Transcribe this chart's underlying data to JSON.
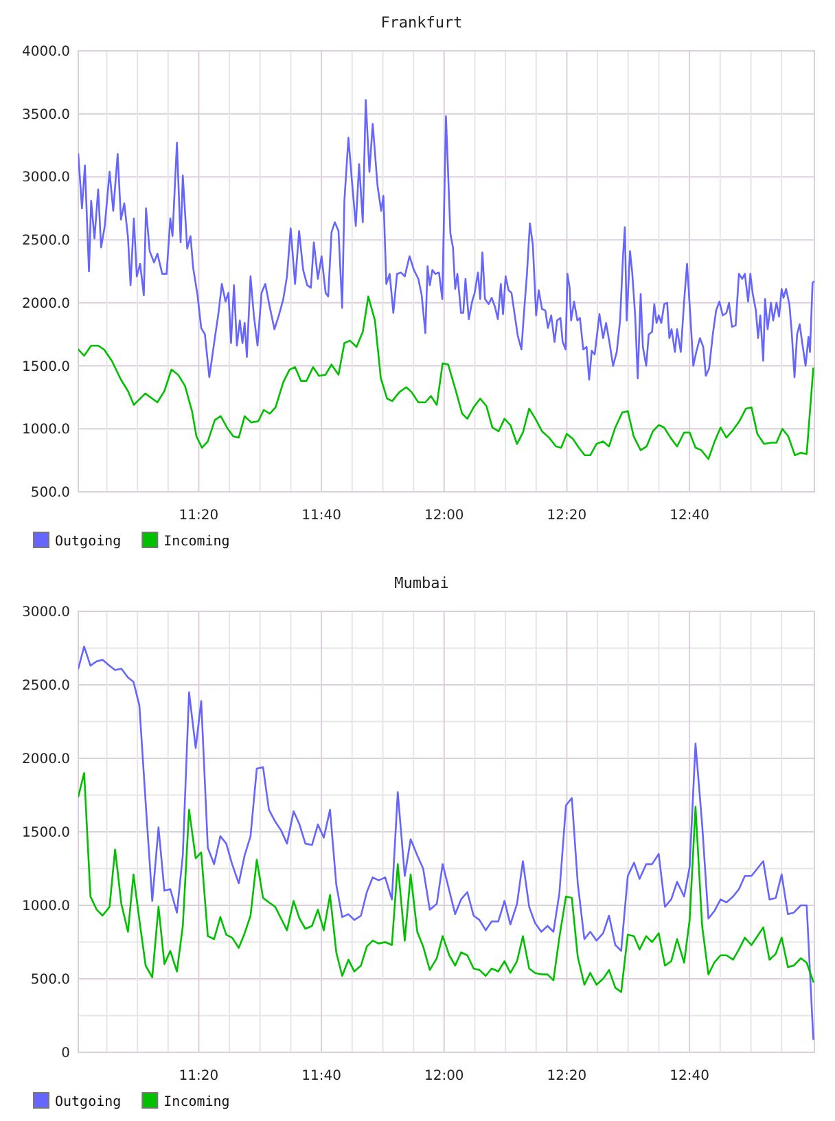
{
  "chart_data": [
    {
      "type": "line",
      "title": "Frankfurt",
      "series": [
        {
          "name": "Outgoing",
          "color": "#6666ff",
          "x": [
            11.006,
            11.016,
            11.024,
            11.035,
            11.041,
            11.05,
            11.06,
            11.068,
            11.078,
            11.091,
            11.101,
            11.113,
            11.122,
            11.131,
            11.141,
            11.148,
            11.157,
            11.165,
            11.174,
            11.184,
            11.19,
            11.2,
            11.212,
            11.221,
            11.234,
            11.246,
            11.256,
            11.262,
            11.274,
            11.284,
            11.29,
            11.302,
            11.311,
            11.318,
            11.33,
            11.34,
            11.35,
            11.362,
            11.377,
            11.387,
            11.396,
            11.406,
            11.414,
            11.421,
            11.429,
            11.437,
            11.445,
            11.452,
            11.458,
            11.464,
            11.474,
            11.483,
            11.493,
            11.504,
            11.514,
            11.526,
            11.539,
            11.551,
            11.563,
            11.573,
            11.583,
            11.595,
            11.606,
            11.617,
            11.628,
            11.638,
            11.646,
            11.657,
            11.667,
            11.678,
            11.685,
            11.694,
            11.703,
            11.713,
            11.723,
            11.729,
            11.74,
            11.75,
            11.76,
            11.769,
            11.779,
            11.787,
            11.797,
            11.806,
            11.819,
            11.829,
            11.835,
            11.843,
            11.852,
            11.862,
            11.872,
            11.883,
            11.893,
            11.906,
            11.918,
            11.93,
            11.939,
            11.949,
            11.955,
            11.961,
            11.968,
            11.976,
            11.986,
            11.995,
            12.005,
            12.017,
            12.024,
            12.03,
            12.036,
            12.046,
            12.052,
            12.058,
            12.067,
            12.076,
            12.083,
            12.092,
            12.098,
            12.104,
            12.111,
            12.121,
            12.129,
            12.138,
            12.146,
            12.154,
            12.16,
            12.167,
            12.175,
            12.183,
            12.192,
            12.2,
            12.21,
            12.216,
            12.225,
            12.233,
            12.241,
            12.25,
            12.257,
            12.266,
            12.275,
            12.282,
            12.291,
            12.3,
            12.307,
            12.316,
            12.322,
            12.33,
            12.335,
            12.341,
            12.345,
            12.353,
            12.362,
            12.369,
            12.378,
            12.387,
            12.394,
            12.401,
            12.409,
            12.422,
            12.432,
            12.44,
            12.449,
            12.459,
            12.469,
            12.478,
            12.486,
            12.491,
            12.496,
            12.505,
            12.511,
            12.519,
            12.526,
            12.534,
            12.54,
            12.549,
            12.556,
            12.565,
            12.571,
            12.577,
            12.583,
            12.59,
            12.598,
            12.606,
            12.612,
            12.618,
            12.627,
            12.633,
            12.643,
            12.652,
            12.66,
            12.668,
            12.677,
            12.685,
            12.695,
            12.704,
            12.711,
            12.72,
            12.73,
            12.739,
            12.748,
            12.757,
            12.767,
            12.774,
            12.782,
            12.792,
            12.801,
            12.81,
            12.817,
            12.826,
            12.832,
            12.838,
            12.847,
            12.853,
            12.859,
            12.867,
            12.872,
            12.879,
            12.888,
            12.894,
            12.903,
            12.91,
            12.917,
            12.922,
            12.929,
            12.938,
            12.944,
            12.952,
            12.959,
            12.966,
            12.973,
            12.982,
            12.99,
            12.994,
            13.001,
            13.006
          ],
          "values": [
            3180,
            2750,
            3090,
            2250,
            2810,
            2510,
            2900,
            2440,
            2610,
            3040,
            2730,
            3180,
            2660,
            2790,
            2520,
            2140,
            2670,
            2210,
            2310,
            2060,
            2750,
            2410,
            2320,
            2390,
            2230,
            2230,
            2670,
            2530,
            3270,
            2480,
            3010,
            2430,
            2530,
            2280,
            2060,
            1800,
            1750,
            1410,
            1720,
            1920,
            2150,
            2010,
            2080,
            1680,
            2140,
            1660,
            1860,
            1680,
            1840,
            1570,
            2210,
            1900,
            1660,
            2080,
            2150,
            1970,
            1790,
            1900,
            2030,
            2210,
            2590,
            2150,
            2570,
            2260,
            2140,
            2120,
            2480,
            2190,
            2370,
            2080,
            2050,
            2560,
            2640,
            2570,
            1960,
            2810,
            3310,
            2950,
            2610,
            3100,
            2640,
            3610,
            3040,
            3420,
            2930,
            2730,
            2850,
            2150,
            2230,
            1920,
            2230,
            2240,
            2210,
            2370,
            2260,
            2190,
            2060,
            1760,
            2290,
            2140,
            2260,
            2230,
            2240,
            2030,
            3480,
            2550,
            2440,
            2110,
            2230,
            1920,
            1920,
            2190,
            1870,
            2010,
            2080,
            2240,
            2030,
            2400,
            2030,
            1990,
            2040,
            1970,
            1870,
            2150,
            1910,
            2210,
            2100,
            2080,
            1900,
            1740,
            1630,
            1880,
            2230,
            2630,
            2460,
            1900,
            2100,
            1950,
            1940,
            1800,
            1900,
            1690,
            1860,
            1880,
            1690,
            1630,
            2230,
            2120,
            1860,
            2010,
            1860,
            1880,
            1630,
            1650,
            1390,
            1620,
            1590,
            1910,
            1720,
            1840,
            1690,
            1500,
            1610,
            1860,
            2370,
            2600,
            1860,
            2410,
            2240,
            1900,
            1400,
            2070,
            1650,
            1500,
            1750,
            1770,
            1990,
            1840,
            1900,
            1840,
            1990,
            2000,
            1720,
            1790,
            1610,
            1790,
            1610,
            2010,
            2310,
            1940,
            1500,
            1610,
            1720,
            1650,
            1420,
            1480,
            1750,
            1940,
            2010,
            1900,
            1920,
            2000,
            1810,
            1820,
            2230,
            2190,
            2230,
            2010,
            2230,
            2080,
            1940,
            1720,
            1900,
            1540,
            2030,
            1790,
            2000,
            1860,
            2000,
            1890,
            2110,
            2040,
            2110,
            1990,
            1780,
            1410,
            1750,
            1830,
            1680,
            1500,
            1730,
            1610,
            2160,
            2170
          ]
        },
        {
          "name": "Incoming",
          "color": "#00c000",
          "x": [
            11.006,
            11.022,
            11.041,
            11.06,
            11.076,
            11.097,
            11.122,
            11.141,
            11.157,
            11.188,
            11.221,
            11.24,
            11.259,
            11.277,
            11.296,
            11.315,
            11.327,
            11.342,
            11.358,
            11.377,
            11.393,
            11.41,
            11.427,
            11.442,
            11.458,
            11.476,
            11.495,
            11.51,
            11.526,
            11.542,
            11.563,
            11.58,
            11.595,
            11.611,
            11.626,
            11.644,
            11.66,
            11.678,
            11.694,
            11.713,
            11.729,
            11.744,
            11.762,
            11.779,
            11.794,
            11.812,
            11.828,
            11.845,
            11.859,
            11.878,
            11.897,
            11.912,
            11.93,
            11.949,
            11.964,
            11.98,
            11.996,
            12.011,
            12.03,
            12.049,
            12.063,
            12.08,
            12.098,
            12.115,
            12.131,
            12.148,
            12.164,
            12.18,
            12.198,
            12.214,
            12.231,
            12.248,
            12.266,
            12.285,
            12.304,
            12.318,
            12.333,
            12.35,
            12.366,
            12.382,
            12.397,
            12.414,
            12.432,
            12.448,
            12.465,
            12.484,
            12.499,
            12.515,
            12.534,
            12.55,
            12.567,
            12.583,
            12.598,
            12.615,
            12.633,
            12.652,
            12.667,
            12.683,
            12.699,
            12.718,
            12.735,
            12.751,
            12.767,
            12.785,
            12.802,
            12.82,
            12.835,
            12.851,
            12.869,
            12.888,
            12.903,
            12.919,
            12.935,
            12.953,
            12.969,
            12.985,
            13.003
          ],
          "values": [
            1630,
            1580,
            1660,
            1660,
            1630,
            1540,
            1390,
            1300,
            1190,
            1280,
            1210,
            1300,
            1470,
            1430,
            1340,
            1140,
            940,
            850,
            900,
            1070,
            1100,
            1010,
            940,
            930,
            1100,
            1050,
            1060,
            1150,
            1120,
            1170,
            1370,
            1470,
            1490,
            1380,
            1380,
            1490,
            1420,
            1430,
            1510,
            1430,
            1680,
            1700,
            1650,
            1770,
            2050,
            1860,
            1400,
            1240,
            1220,
            1290,
            1330,
            1290,
            1210,
            1210,
            1260,
            1190,
            1520,
            1510,
            1320,
            1120,
            1080,
            1170,
            1240,
            1180,
            1010,
            980,
            1080,
            1030,
            880,
            970,
            1160,
            1080,
            980,
            930,
            860,
            850,
            960,
            920,
            850,
            790,
            790,
            880,
            900,
            860,
            1010,
            1130,
            1140,
            940,
            830,
            860,
            980,
            1030,
            1010,
            930,
            860,
            970,
            970,
            850,
            830,
            760,
            900,
            1010,
            930,
            990,
            1060,
            1160,
            1170,
            960,
            880,
            890,
            890,
            1000,
            940,
            790,
            810,
            800,
            1480
          ]
        }
      ],
      "xlim": [
        11.006,
        13.006
      ],
      "xticks": [
        {
          "value": 11.0833,
          "label": null
        },
        {
          "value": 11.1667,
          "label": null
        },
        {
          "value": 11.25,
          "label": null
        },
        {
          "value": 11.3333,
          "label": "11:20"
        },
        {
          "value": 11.4167,
          "label": null
        },
        {
          "value": 11.5,
          "label": null
        },
        {
          "value": 11.5833,
          "label": null
        },
        {
          "value": 11.6667,
          "label": "11:40"
        },
        {
          "value": 11.75,
          "label": null
        },
        {
          "value": 11.8333,
          "label": null
        },
        {
          "value": 11.9167,
          "label": null
        },
        {
          "value": 12,
          "label": "12:00"
        },
        {
          "value": 12.0833,
          "label": null
        },
        {
          "value": 12.1667,
          "label": null
        },
        {
          "value": 12.25,
          "label": null
        },
        {
          "value": 12.3333,
          "label": "12:20"
        },
        {
          "value": 12.4167,
          "label": null
        },
        {
          "value": 12.5,
          "label": null
        },
        {
          "value": 12.5833,
          "label": null
        },
        {
          "value": 12.6667,
          "label": "12:40"
        },
        {
          "value": 12.75,
          "label": null
        },
        {
          "value": 12.8333,
          "label": null
        },
        {
          "value": 12.9167,
          "label": null
        }
      ],
      "ylim": [
        500,
        4000
      ],
      "yticks": [
        {
          "value": 500,
          "label": "500.0"
        },
        {
          "value": 1000,
          "label": "1000.0"
        },
        {
          "value": 1500,
          "label": "1500.0"
        },
        {
          "value": 2000,
          "label": "2000.0"
        },
        {
          "value": 2500,
          "label": "2500.0"
        },
        {
          "value": 3000,
          "label": "3000.0"
        },
        {
          "value": 3500,
          "label": "3500.0"
        },
        {
          "value": 4000,
          "label": "4000.0"
        }
      ],
      "grid": true,
      "legend": "bottom left"
    },
    {
      "type": "line",
      "title": "Mumbai",
      "x": [
        11.006,
        11.022,
        11.039,
        11.056,
        11.072,
        11.091,
        11.106,
        11.123,
        11.141,
        11.156,
        11.172,
        11.189,
        11.207,
        11.224,
        11.24,
        11.256,
        11.274,
        11.29,
        11.307,
        11.325,
        11.34,
        11.358,
        11.375,
        11.392,
        11.408,
        11.424,
        11.442,
        11.458,
        11.474,
        11.491,
        11.508,
        11.524,
        11.541,
        11.557,
        11.573,
        11.591,
        11.607,
        11.623,
        11.641,
        11.657,
        11.673,
        11.69,
        11.707,
        11.723,
        11.74,
        11.756,
        11.774,
        11.79,
        11.806,
        11.822,
        11.84,
        11.858,
        11.874,
        11.893,
        11.909,
        11.927,
        11.943,
        11.961,
        11.98,
        11.996,
        12.014,
        12.03,
        12.046,
        12.063,
        12.08,
        12.096,
        12.113,
        12.129,
        12.147,
        12.164,
        12.18,
        12.198,
        12.214,
        12.231,
        12.247,
        12.264,
        12.281,
        12.297,
        12.313,
        12.331,
        12.347,
        12.363,
        12.381,
        12.397,
        12.414,
        12.432,
        12.448,
        12.465,
        12.481,
        12.499,
        12.516,
        12.531,
        12.549,
        12.565,
        12.583,
        12.6,
        12.617,
        12.633,
        12.652,
        12.667,
        12.683,
        12.701,
        12.718,
        12.734,
        12.751,
        12.767,
        12.785,
        12.801,
        12.817,
        12.835,
        12.851,
        12.867,
        12.884,
        12.901,
        12.917,
        12.934,
        12.95,
        12.969,
        12.985,
        13.003
      ],
      "series": [
        {
          "name": "Outgoing",
          "color": "#6666ff",
          "values": [
            2610,
            2760,
            2630,
            2660,
            2670,
            2630,
            2600,
            2610,
            2550,
            2520,
            2360,
            1700,
            1030,
            1530,
            1100,
            1110,
            950,
            1340,
            2450,
            2070,
            2390,
            1390,
            1280,
            1470,
            1420,
            1280,
            1150,
            1340,
            1470,
            1930,
            1940,
            1650,
            1570,
            1510,
            1420,
            1640,
            1550,
            1420,
            1410,
            1550,
            1460,
            1650,
            1140,
            920,
            940,
            900,
            930,
            1090,
            1190,
            1170,
            1190,
            1040,
            1770,
            1200,
            1450,
            1340,
            1250,
            970,
            1010,
            1280,
            1100,
            940,
            1040,
            1090,
            930,
            900,
            830,
            890,
            890,
            1030,
            870,
            1010,
            1300,
            990,
            880,
            820,
            860,
            820,
            1080,
            1680,
            1730,
            1150,
            770,
            820,
            760,
            810,
            930,
            730,
            690,
            1200,
            1290,
            1180,
            1280,
            1280,
            1350,
            990,
            1040,
            1160,
            1060,
            1260,
            2100,
            1550,
            910,
            960,
            1040,
            1020,
            1060,
            1110,
            1200,
            1200,
            1250,
            1300,
            1040,
            1050,
            1210,
            940,
            950,
            1000,
            1000,
            90
          ]
        },
        {
          "name": "Incoming",
          "color": "#00c000",
          "values": [
            1740,
            1900,
            1060,
            970,
            930,
            990,
            1380,
            1010,
            820,
            1210,
            900,
            590,
            510,
            990,
            600,
            690,
            550,
            860,
            1650,
            1320,
            1360,
            790,
            770,
            920,
            800,
            780,
            710,
            810,
            930,
            1310,
            1050,
            1020,
            990,
            910,
            830,
            1030,
            910,
            840,
            860,
            970,
            830,
            1070,
            680,
            520,
            630,
            550,
            590,
            720,
            760,
            740,
            750,
            730,
            1280,
            760,
            1210,
            820,
            720,
            560,
            640,
            790,
            660,
            590,
            680,
            660,
            570,
            560,
            520,
            570,
            550,
            620,
            540,
            620,
            790,
            570,
            540,
            530,
            530,
            490,
            780,
            1060,
            1050,
            650,
            460,
            540,
            460,
            500,
            560,
            440,
            410,
            800,
            790,
            700,
            790,
            750,
            810,
            590,
            620,
            770,
            610,
            900,
            1670,
            860,
            530,
            610,
            660,
            660,
            630,
            700,
            780,
            730,
            790,
            850,
            630,
            670,
            780,
            580,
            590,
            640,
            610,
            480
          ]
        }
      ],
      "xlim": [
        11.006,
        13.006
      ],
      "xticks": [
        {
          "value": 11.0833,
          "label": null
        },
        {
          "value": 11.1667,
          "label": null
        },
        {
          "value": 11.25,
          "label": null
        },
        {
          "value": 11.3333,
          "label": "11:20"
        },
        {
          "value": 11.4167,
          "label": null
        },
        {
          "value": 11.5,
          "label": null
        },
        {
          "value": 11.5833,
          "label": null
        },
        {
          "value": 11.6667,
          "label": "11:40"
        },
        {
          "value": 11.75,
          "label": null
        },
        {
          "value": 11.8333,
          "label": null
        },
        {
          "value": 11.9167,
          "label": null
        },
        {
          "value": 12,
          "label": "12:00"
        },
        {
          "value": 12.0833,
          "label": null
        },
        {
          "value": 12.1667,
          "label": null
        },
        {
          "value": 12.25,
          "label": null
        },
        {
          "value": 12.3333,
          "label": "12:20"
        },
        {
          "value": 12.4167,
          "label": null
        },
        {
          "value": 12.5,
          "label": null
        },
        {
          "value": 12.5833,
          "label": null
        },
        {
          "value": 12.6667,
          "label": "12:40"
        },
        {
          "value": 12.75,
          "label": null
        },
        {
          "value": 12.8333,
          "label": null
        },
        {
          "value": 12.9167,
          "label": null
        }
      ],
      "ylim": [
        0,
        3000
      ],
      "yticks": [
        0,
        {
          "value": 250,
          "label": null
        },
        {
          "value": 500,
          "label": "500.0"
        },
        {
          "value": 750,
          "label": null
        },
        {
          "value": 1000,
          "label": "1000.0"
        },
        {
          "value": 1250,
          "label": null
        },
        {
          "value": 1500,
          "label": "1500.0"
        },
        {
          "value": 1750,
          "label": null
        },
        {
          "value": 2000,
          "label": "2000.0"
        },
        {
          "value": 2250,
          "label": null
        },
        {
          "value": 2500,
          "label": "2500.0"
        },
        {
          "value": 2750,
          "label": null
        },
        {
          "value": 3000,
          "label": "3000.0"
        }
      ],
      "grid": true,
      "legend": "bottom left"
    }
  ]
}
